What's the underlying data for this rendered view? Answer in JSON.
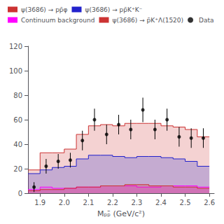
{
  "chart_data": {
    "type": "histogram",
    "xlabel": "Mₚₚ̄ (GeV/c²)",
    "bins": [
      1.85,
      1.9,
      1.95,
      2.0,
      2.05,
      2.1,
      2.15,
      2.2,
      2.25,
      2.3,
      2.35,
      2.4,
      2.45,
      2.5,
      2.55,
      2.6
    ],
    "xlim": [
      1.85,
      2.62
    ],
    "xticks": [
      1.9,
      {
        "value": 2,
        "label": "2.0"
      },
      2.1,
      2.2,
      2.3,
      2.4,
      2.5,
      2.6
    ],
    "ylim": [
      0,
      120
    ],
    "yticks": [
      0,
      20,
      40,
      60,
      80,
      100,
      120
    ],
    "grid": false,
    "legend": "upper left",
    "series": [
      {
        "name": "ψ(3686) → pp̄φ",
        "type": "histogram",
        "color": "#cc3333",
        "values": [
          19,
          33,
          33,
          36,
          48,
          55,
          56,
          55,
          57,
          57,
          57,
          55,
          54,
          52,
          46
        ]
      },
      {
        "name": "ψ(3686) → pp̄K⁺K⁻",
        "type": "histogram",
        "color": "#2222cc",
        "values": [
          16,
          19,
          21,
          22,
          28,
          31,
          31,
          30,
          29,
          30,
          30,
          29,
          28,
          26,
          22
        ]
      },
      {
        "name": "Continuum background",
        "type": "histogram",
        "color": "#ff00ff",
        "values": [
          3,
          5,
          4,
          4,
          5,
          5,
          6,
          6,
          6,
          5,
          5,
          6,
          6,
          6,
          5
        ]
      },
      {
        "name": "ψ(3686) → p̄K⁺Λ(1520)",
        "type": "histogram",
        "color": "#cc3333",
        "values": [
          2,
          3,
          3,
          4,
          5,
          5,
          6,
          6,
          7,
          7,
          6,
          6,
          5,
          5,
          4
        ]
      },
      {
        "name": "Data",
        "type": "scatter",
        "color": "black",
        "x": [
          1.875,
          1.925,
          1.975,
          2.025,
          2.075,
          2.125,
          2.175,
          2.225,
          2.275,
          2.325,
          2.375,
          2.425,
          2.475,
          2.525,
          2.575
        ],
        "values": [
          5,
          22,
          26,
          27,
          43,
          60,
          48,
          56,
          52,
          68,
          52,
          60,
          46,
          45,
          45
        ],
        "yerr": [
          4,
          6,
          6,
          6,
          8,
          9,
          8,
          8,
          8,
          10,
          8,
          9,
          8,
          8,
          8
        ]
      }
    ]
  }
}
